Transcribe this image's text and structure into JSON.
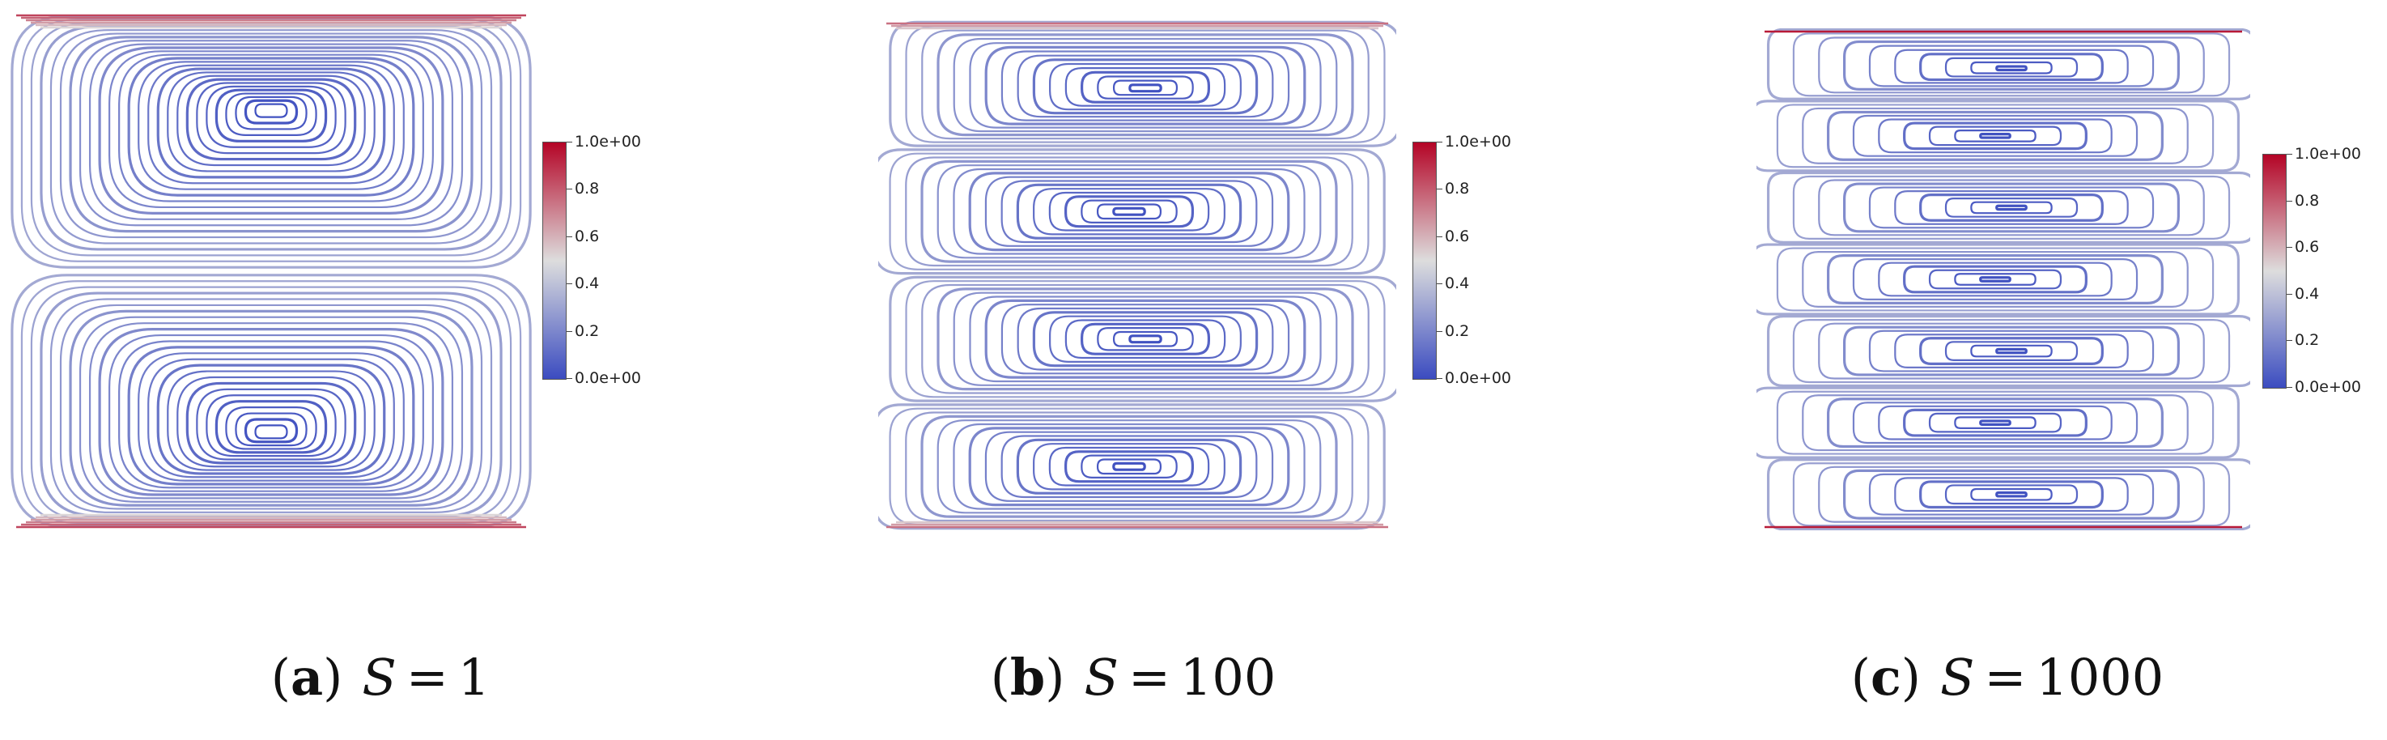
{
  "colorbar": {
    "ticks": [
      "1.0e+00",
      "0.8",
      "0.6",
      "0.4",
      "0.2",
      "0.0e+00"
    ],
    "colors": {
      "low": "#3b4cc0",
      "mid": "#dddddd",
      "high": "#b40426"
    }
  },
  "panels": [
    {
      "letter": "a",
      "variable": "S",
      "value": "1",
      "cells": 2
    },
    {
      "letter": "b",
      "variable": "S",
      "value": "100",
      "cells": 4
    },
    {
      "letter": "c",
      "variable": "S",
      "value": "1000",
      "cells": 7
    }
  ]
}
